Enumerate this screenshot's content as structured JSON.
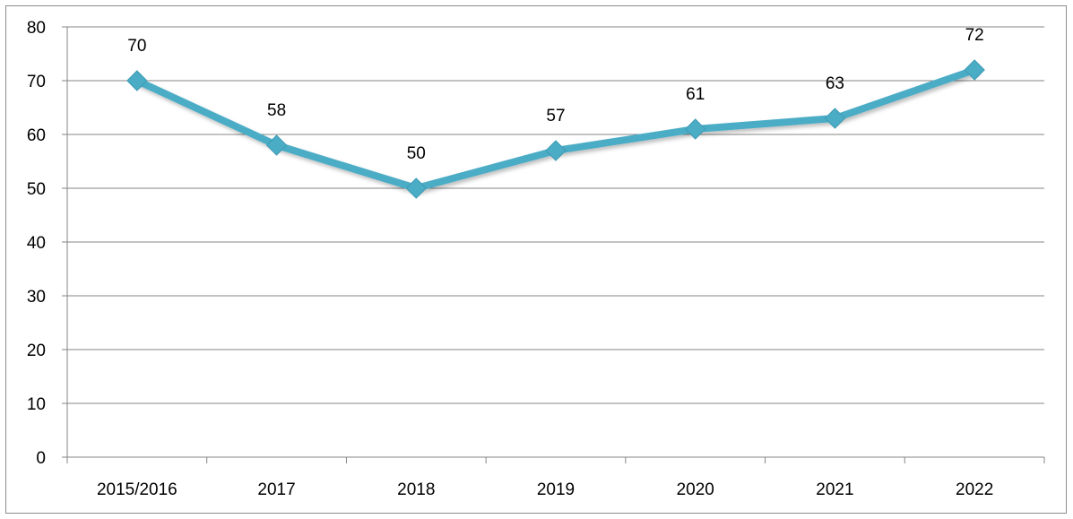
{
  "chart_data": {
    "type": "line",
    "title": "",
    "xlabel": "",
    "ylabel": "",
    "categories": [
      "2015/2016",
      "2017",
      "2018",
      "2019",
      "2020",
      "2021",
      "2022"
    ],
    "series": [
      {
        "values": [
          70,
          58,
          50,
          57,
          61,
          63,
          72
        ],
        "color": "#4BACC6",
        "marker": "diamond",
        "data_labels": true
      }
    ],
    "ylim": [
      0,
      80
    ],
    "yticks": [
      0,
      10,
      20,
      30,
      40,
      50,
      60,
      70,
      80
    ],
    "grid": true,
    "legend": "none"
  }
}
